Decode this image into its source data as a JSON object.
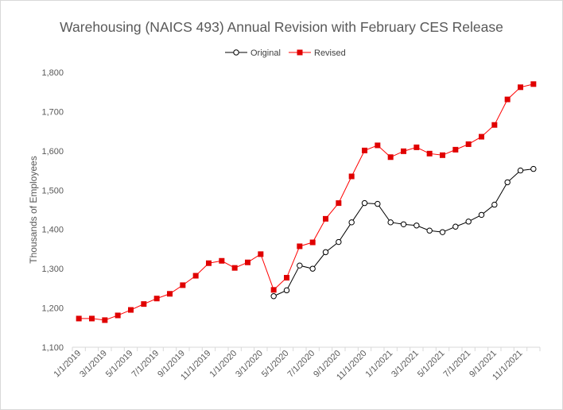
{
  "chart_data": {
    "type": "line",
    "title": "Warehousing (NAICS 493) Annual Revision with February CES Release",
    "xlabel": "",
    "ylabel": "Thousands of Employees",
    "ylim": [
      1100,
      1800
    ],
    "yticks": [
      "1,100",
      "1,200",
      "1,300",
      "1,400",
      "1,500",
      "1,600",
      "1,700",
      "1,800"
    ],
    "ytick_values": [
      1100,
      1200,
      1300,
      1400,
      1500,
      1600,
      1700,
      1800
    ],
    "legend_position": "top-center",
    "grid": false,
    "x": [
      "1/1/2019",
      "2/1/2019",
      "3/1/2019",
      "4/1/2019",
      "5/1/2019",
      "6/1/2019",
      "7/1/2019",
      "8/1/2019",
      "9/1/2019",
      "10/1/2019",
      "11/1/2019",
      "12/1/2019",
      "1/1/2020",
      "2/1/2020",
      "3/1/2020",
      "4/1/2020",
      "5/1/2020",
      "6/1/2020",
      "7/1/2020",
      "8/1/2020",
      "9/1/2020",
      "10/1/2020",
      "11/1/2020",
      "12/1/2020",
      "1/1/2021",
      "2/1/2021",
      "3/1/2021",
      "4/1/2021",
      "5/1/2021",
      "6/1/2021",
      "7/1/2021",
      "8/1/2021",
      "9/1/2021",
      "10/1/2021",
      "11/1/2021",
      "12/1/2021"
    ],
    "x_tick_labels": [
      "1/1/2019",
      "3/1/2019",
      "5/1/2019",
      "7/1/2019",
      "9/1/2019",
      "11/1/2019",
      "1/1/2020",
      "3/1/2020",
      "5/1/2020",
      "7/1/2020",
      "9/1/2020",
      "11/1/2020",
      "1/1/2021",
      "3/1/2021",
      "5/1/2021",
      "7/1/2021",
      "9/1/2021",
      "11/1/2021"
    ],
    "series": [
      {
        "name": "Original",
        "color": "#000000",
        "marker": "open-circle",
        "values": [
          null,
          null,
          null,
          null,
          null,
          null,
          null,
          null,
          null,
          null,
          null,
          null,
          null,
          null,
          null,
          1230,
          1245,
          1308,
          1300,
          1342,
          1368,
          1418,
          1467,
          1465,
          1418,
          1413,
          1410,
          1397,
          1393,
          1407,
          1420,
          1437,
          1463,
          1520,
          1550,
          1554
        ]
      },
      {
        "name": "Revised",
        "color": "#ff0000",
        "marker_color": "#e00000",
        "marker": "filled-square",
        "values": [
          1173,
          1173,
          1169,
          1181,
          1195,
          1210,
          1224,
          1236,
          1258,
          1282,
          1314,
          1320,
          1302,
          1316,
          1337,
          1246,
          1277,
          1357,
          1367,
          1427,
          1467,
          1535,
          1601,
          1614,
          1584,
          1599,
          1609,
          1593,
          1589,
          1603,
          1617,
          1636,
          1666,
          1731,
          1762,
          1770
        ]
      }
    ]
  }
}
